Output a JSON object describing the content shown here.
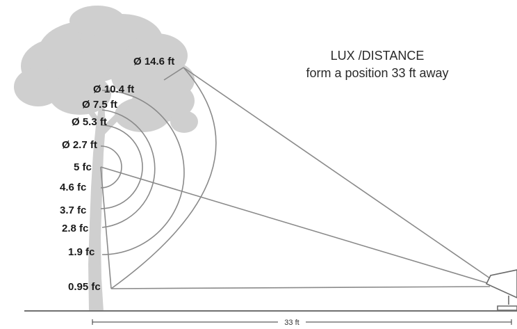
{
  "title": {
    "line1": "LUX /DISTANCE",
    "line2": "form a position 33 ft away"
  },
  "diameters": [
    "Ø 14.6 ft",
    "Ø 10.4 ft",
    "Ø 7.5 ft",
    "Ø 5.3 ft",
    "Ø 2.7 ft"
  ],
  "illuminance": [
    "5 fc",
    "4.6 fc",
    "3.7 fc",
    "2.8 fc",
    "1.9 fc",
    "0.95 fc"
  ],
  "distance_label": "33 ft",
  "colors": {
    "tree": "#cfcfcf",
    "lines": "#8a8a8a",
    "ground": "#707070",
    "text": "#1a1a1a"
  }
}
